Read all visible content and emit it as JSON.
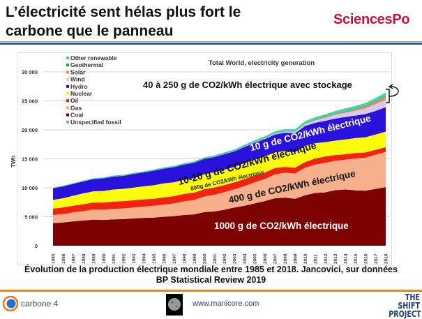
{
  "slide": {
    "title": "L’électricité sent hélas plus fort le carbone que le panneau",
    "brand": "SciencesPo",
    "caption_line1": "Évolution de la production électrique mondiale entre 1985 et 2018. Jancovici, sur données",
    "caption_line2": "BP Statistical Review 2019",
    "footer": {
      "carbone4": "carbone 4",
      "website": "www.manicore.com",
      "shift_line1": "THE SHIFT",
      "shift_line2": "PROJECT"
    }
  },
  "annotations": {
    "storage": "40 à 250 g de CO2/kWh électrique avec stockage",
    "hydro": "10 g de CO2/kWh électrique",
    "nuclear": "10-20 g de CO2/kWh électrique",
    "oil": "800g de CO2/kWh électrique",
    "gas": "400 g de CO2/kWh électrique",
    "coal": "1000 g de CO2/kWh électrique"
  },
  "chart_data": {
    "type": "area",
    "stacked": true,
    "title": "Total World, electricity generation",
    "ylabel": "TWh",
    "xlabel": "",
    "ylim": [
      0,
      30000
    ],
    "yticks": [
      0,
      5000,
      10000,
      15000,
      20000,
      25000,
      30000
    ],
    "ytick_labels": [
      "0",
      "5 000",
      "10 000",
      "15 000",
      "20 000",
      "25 000",
      "30 000"
    ],
    "grid": true,
    "legend_position": "top-left",
    "x": [
      "1985",
      "1986",
      "1987",
      "1988",
      "1989",
      "1990",
      "1991",
      "1992",
      "1993",
      "1994",
      "1995",
      "1996",
      "1997",
      "1998",
      "1999",
      "2000",
      "2001",
      "2002",
      "2003",
      "2004",
      "2005",
      "2006",
      "2007",
      "2008",
      "2009",
      "2010",
      "2011",
      "2012",
      "2013",
      "2014",
      "2015",
      "2016",
      "2017",
      "2018"
    ],
    "series": [
      {
        "name": "Unspecified fossil",
        "color": "#a0a0a0",
        "values": [
          0,
          0,
          0,
          0,
          0,
          0,
          0,
          0,
          0,
          0,
          0,
          0,
          0,
          0,
          0,
          0,
          0,
          0,
          0,
          0,
          0,
          0,
          0,
          0,
          0,
          0,
          0,
          0,
          0,
          0,
          0,
          0,
          0,
          0
        ]
      },
      {
        "name": "Coal",
        "color": "#7d0303",
        "values": [
          3900,
          4000,
          4200,
          4350,
          4500,
          4450,
          4550,
          4600,
          4700,
          4800,
          4850,
          5000,
          5100,
          5300,
          5400,
          5800,
          5900,
          6200,
          6600,
          6900,
          7300,
          7700,
          8200,
          8300,
          8100,
          8700,
          9100,
          9200,
          9600,
          9700,
          9550,
          9500,
          9800,
          10100
        ]
      },
      {
        "name": "Gas",
        "color": "#f7b08c",
        "values": [
          1400,
          1450,
          1550,
          1650,
          1750,
          1750,
          1800,
          1850,
          1900,
          1950,
          2050,
          2100,
          2200,
          2350,
          2500,
          2700,
          2900,
          3050,
          3150,
          3400,
          3650,
          3800,
          4100,
          4300,
          4350,
          4750,
          4900,
          5100,
          5050,
          5150,
          5500,
          5700,
          5900,
          6100
        ]
      },
      {
        "name": "Oil",
        "color": "#f3220e",
        "values": [
          1100,
          1150,
          1150,
          1150,
          1200,
          1250,
          1250,
          1250,
          1250,
          1250,
          1200,
          1250,
          1250,
          1300,
          1250,
          1250,
          1250,
          1200,
          1200,
          1200,
          1150,
          1100,
          1100,
          1000,
          1000,
          1000,
          1050,
          1100,
          1000,
          950,
          950,
          900,
          850,
          800
        ]
      },
      {
        "name": "Nuclear",
        "color": "#fcfc0c",
        "values": [
          1500,
          1600,
          1720,
          1880,
          1930,
          2000,
          2100,
          2120,
          2180,
          2250,
          2330,
          2420,
          2400,
          2420,
          2520,
          2580,
          2650,
          2700,
          2640,
          2760,
          2770,
          2800,
          2720,
          2730,
          2700,
          2760,
          2650,
          2470,
          2490,
          2540,
          2580,
          2620,
          2640,
          2700
        ]
      },
      {
        "name": "Hydro",
        "color": "#2a12dc",
        "values": [
          2000,
          2020,
          2040,
          2060,
          2100,
          2170,
          2220,
          2230,
          2350,
          2380,
          2500,
          2530,
          2600,
          2620,
          2640,
          2650,
          2600,
          2650,
          2700,
          2800,
          2900,
          3000,
          3060,
          3180,
          3250,
          3450,
          3500,
          3680,
          3800,
          3880,
          3880,
          4010,
          4080,
          4200
        ]
      },
      {
        "name": "Wind",
        "color": "#d9c9f2",
        "values": [
          0,
          0,
          0,
          0,
          0,
          4,
          4,
          5,
          6,
          7,
          8,
          9,
          12,
          16,
          21,
          31,
          38,
          52,
          63,
          85,
          104,
          133,
          170,
          220,
          277,
          345,
          437,
          524,
          645,
          712,
          831,
          962,
          1140,
          1270
        ]
      },
      {
        "name": "Solar",
        "color": "#ef8a58",
        "values": [
          0,
          0,
          0,
          0,
          0,
          0,
          0,
          0,
          0,
          0,
          0,
          0,
          0,
          0,
          1,
          1,
          1,
          2,
          2,
          3,
          4,
          5,
          7,
          12,
          20,
          32,
          64,
          99,
          134,
          190,
          253,
          330,
          445,
          585
        ]
      },
      {
        "name": "Geothermal",
        "color": "#1f9a5c",
        "values": [
          30,
          32,
          34,
          36,
          38,
          40,
          42,
          44,
          45,
          46,
          48,
          50,
          52,
          54,
          55,
          55,
          56,
          57,
          58,
          60,
          60,
          61,
          62,
          64,
          66,
          68,
          69,
          70,
          72,
          74,
          78,
          82,
          86,
          89
        ]
      },
      {
        "name": "Other renewable",
        "color": "#3ed6a4",
        "values": [
          100,
          105,
          110,
          115,
          120,
          130,
          135,
          140,
          145,
          150,
          160,
          165,
          170,
          175,
          180,
          185,
          190,
          200,
          220,
          235,
          250,
          265,
          290,
          310,
          330,
          370,
          400,
          430,
          460,
          490,
          510,
          540,
          560,
          600
        ]
      }
    ]
  }
}
